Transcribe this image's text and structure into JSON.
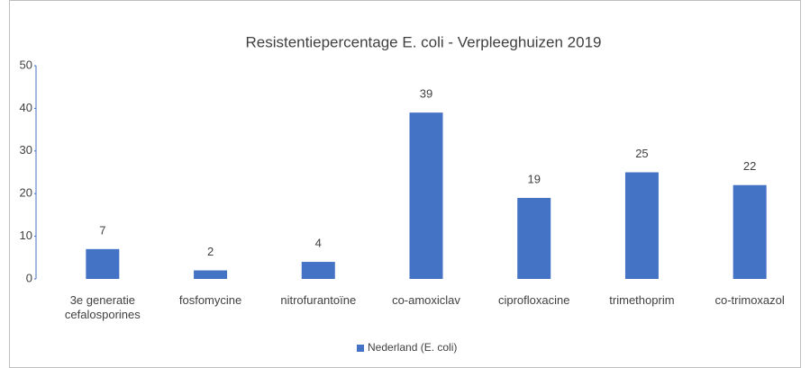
{
  "chart_data": {
    "type": "bar",
    "title": "Resistentiepercentage E. coli -  Verpleeghuizen 2019",
    "categories": [
      "3e generatie cefalosporines",
      "fosfomycine",
      "nitrofurantoïne",
      "co-amoxiclav",
      "ciprofloxacine",
      "trimethoprim",
      "co-trimoxazol"
    ],
    "series": [
      {
        "name": "Nederland (E. coli)",
        "color": "#4472c4",
        "values": [
          7,
          2,
          4,
          39,
          19,
          25,
          22
        ]
      }
    ],
    "ylim": [
      0,
      50
    ],
    "yticks": [
      0,
      10,
      20,
      30,
      40,
      50
    ],
    "grid": false,
    "legend": "bottom"
  }
}
